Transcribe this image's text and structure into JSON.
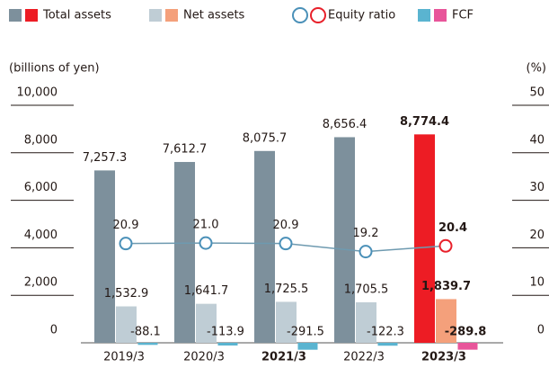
{
  "chart_data": {
    "type": "bar",
    "y_label": "(billions of yen)",
    "y2_label": "(%)",
    "categories": [
      "2019/3",
      "2020/3",
      "2021/3",
      "2022/3",
      "2023/3"
    ],
    "category_bold": [
      false,
      false,
      true,
      false,
      true
    ],
    "highlight": 4,
    "ylim": [
      0,
      10000
    ],
    "yticks": [
      0,
      {
        "value": 2000,
        "label": "2,000"
      },
      {
        "value": 4000,
        "label": "4,000"
      },
      {
        "value": 6000,
        "label": "6,000"
      },
      {
        "value": 8000,
        "label": "8,000"
      },
      {
        "value": 10000,
        "label": "10,000"
      }
    ],
    "y2lim": [
      0,
      50
    ],
    "y2ticks": [
      0,
      10,
      20,
      30,
      40,
      50
    ],
    "series": [
      {
        "name": "Total assets",
        "kind": "bar",
        "color": "#7d909c",
        "highlight_color": "#ed1c24",
        "values": [
          7257.3,
          7612.7,
          8075.7,
          8656.4,
          8774.4
        ],
        "value_labels": [
          "7,257.3",
          "7,612.7",
          "8,075.7",
          "8,656.4",
          "8,774.4"
        ]
      },
      {
        "name": "Net assets",
        "kind": "bar",
        "color": "#bfcdd5",
        "highlight_color": "#f4a07b",
        "values": [
          1532.9,
          1641.7,
          1725.5,
          1705.5,
          1839.7
        ],
        "value_labels": [
          "1,532.9",
          "1,641.7",
          "1,725.5",
          "1,705.5",
          "1,839.7"
        ]
      },
      {
        "name": "Equity ratio",
        "kind": "line",
        "axis": "y2",
        "color": "#4a90b8",
        "highlight_color": "#e8202a",
        "values": [
          20.9,
          21.0,
          20.9,
          19.2,
          20.4
        ],
        "value_labels": [
          "20.9",
          "21.0",
          "20.9",
          "19.2",
          "20.4"
        ]
      },
      {
        "name": "FCF",
        "kind": "bar",
        "color": "#5ab4d0",
        "highlight_color": "#e8559a",
        "values": [
          -88.1,
          -113.9,
          -291.5,
          -122.3,
          -289.8
        ]
      }
    ]
  }
}
